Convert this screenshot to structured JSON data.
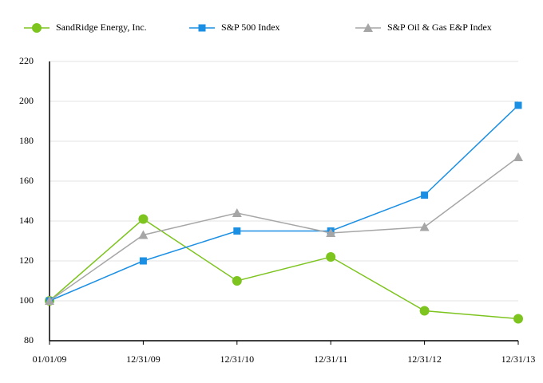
{
  "chart_data": {
    "type": "line",
    "categories": [
      "01/01/09",
      "12/31/09",
      "12/31/10",
      "12/31/11",
      "12/31/12",
      "12/31/13"
    ],
    "series": [
      {
        "name": "SandRidge Energy, Inc.",
        "color": "#7dc41f",
        "marker": "circle",
        "values": [
          100,
          141,
          110,
          122,
          95,
          91
        ]
      },
      {
        "name": "S&P 500 Index",
        "color": "#1a8fe3",
        "marker": "square",
        "values": [
          100,
          120,
          135,
          135,
          153,
          198
        ]
      },
      {
        "name": "S&P Oil & Gas E&P Index",
        "color": "#a6a6a6",
        "marker": "triangle",
        "values": [
          100,
          133,
          144,
          134,
          137,
          172
        ]
      }
    ],
    "ylim": [
      80,
      220
    ],
    "yticks": [
      80,
      100,
      120,
      140,
      160,
      180,
      200,
      220
    ],
    "grid": true
  }
}
